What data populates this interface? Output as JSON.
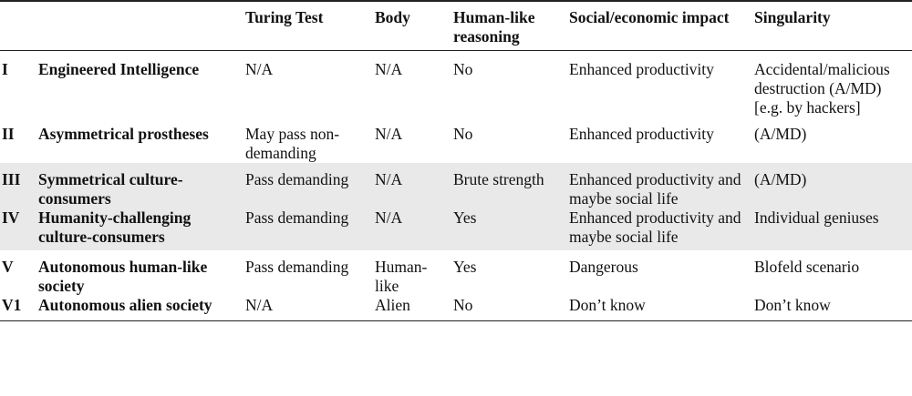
{
  "headers": [
    "",
    "",
    "Turing Test",
    "Body",
    "Human-like reasoning",
    "Social/economic impact",
    "Singularity"
  ],
  "rows": [
    {
      "num": "I",
      "name": "Engineered Intelligence",
      "turing": "N/A",
      "body": "N/A",
      "human": "No",
      "social": "Enhanced productivity",
      "singularity": "Accidental/malicious destruction (A/MD)",
      "singularity_note": "[e.g. by hackers]"
    },
    {
      "num": "II",
      "name": "Asymmetrical prostheses",
      "turing": "May pass non-demanding",
      "body": "N/A",
      "human": "No",
      "social": "Enhanced productivity",
      "singularity": "(A/MD)",
      "singularity_note": ""
    },
    {
      "num": "III",
      "name": "Symmetrical culture-consumers",
      "turing": "Pass demanding",
      "body": "N/A",
      "human": "Brute strength",
      "social": "Enhanced productivity and maybe social life",
      "singularity": "(A/MD)",
      "singularity_note": ""
    },
    {
      "num": "IV",
      "name": "Humanity-challenging culture-consumers",
      "turing": "Pass demanding",
      "body": "N/A",
      "human": "Yes",
      "social": "Enhanced productivity and maybe social life",
      "singularity": "Individual geniuses",
      "singularity_note": ""
    },
    {
      "num": "V",
      "name": "Autonomous human-like society",
      "turing": "Pass demanding",
      "body": "Human-like",
      "human": "Yes",
      "social": "Dangerous",
      "singularity": "Blofeld scenario",
      "singularity_note": ""
    },
    {
      "num": "V1",
      "name": "Autonomous alien society",
      "turing": "N/A",
      "body": "Alien",
      "human": "No",
      "social": "Don’t know",
      "singularity": "Don’t know",
      "singularity_note": ""
    }
  ],
  "colors": {
    "band": "#e9e9e9",
    "rule": "#222222"
  }
}
